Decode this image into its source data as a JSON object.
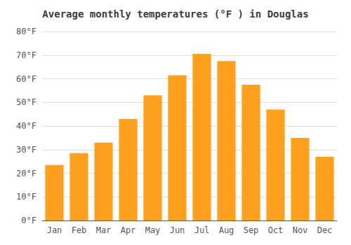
{
  "chart_data": {
    "type": "bar",
    "title": "Average monthly temperatures (°F ) in Douglas",
    "categories": [
      "Jan",
      "Feb",
      "Mar",
      "Apr",
      "May",
      "Jun",
      "Jul",
      "Aug",
      "Sep",
      "Oct",
      "Nov",
      "Dec"
    ],
    "values": [
      23.5,
      28.5,
      33.0,
      43.0,
      53.0,
      61.5,
      70.5,
      67.5,
      57.5,
      47.0,
      35.0,
      27.0
    ],
    "color": "#FFA020",
    "ylim": [
      0,
      80
    ],
    "yticks": [
      {
        "value": 0,
        "label": "0°F"
      },
      {
        "value": 10,
        "label": "10°F"
      },
      {
        "value": 20,
        "label": "20°F"
      },
      {
        "value": 30,
        "label": "30°F"
      },
      {
        "value": 40,
        "label": "40°F"
      },
      {
        "value": 50,
        "label": "50°F"
      },
      {
        "value": 60,
        "label": "60°F"
      },
      {
        "value": 70,
        "label": "70°F"
      },
      {
        "value": 80,
        "label": "80°F"
      }
    ],
    "grid": true
  }
}
